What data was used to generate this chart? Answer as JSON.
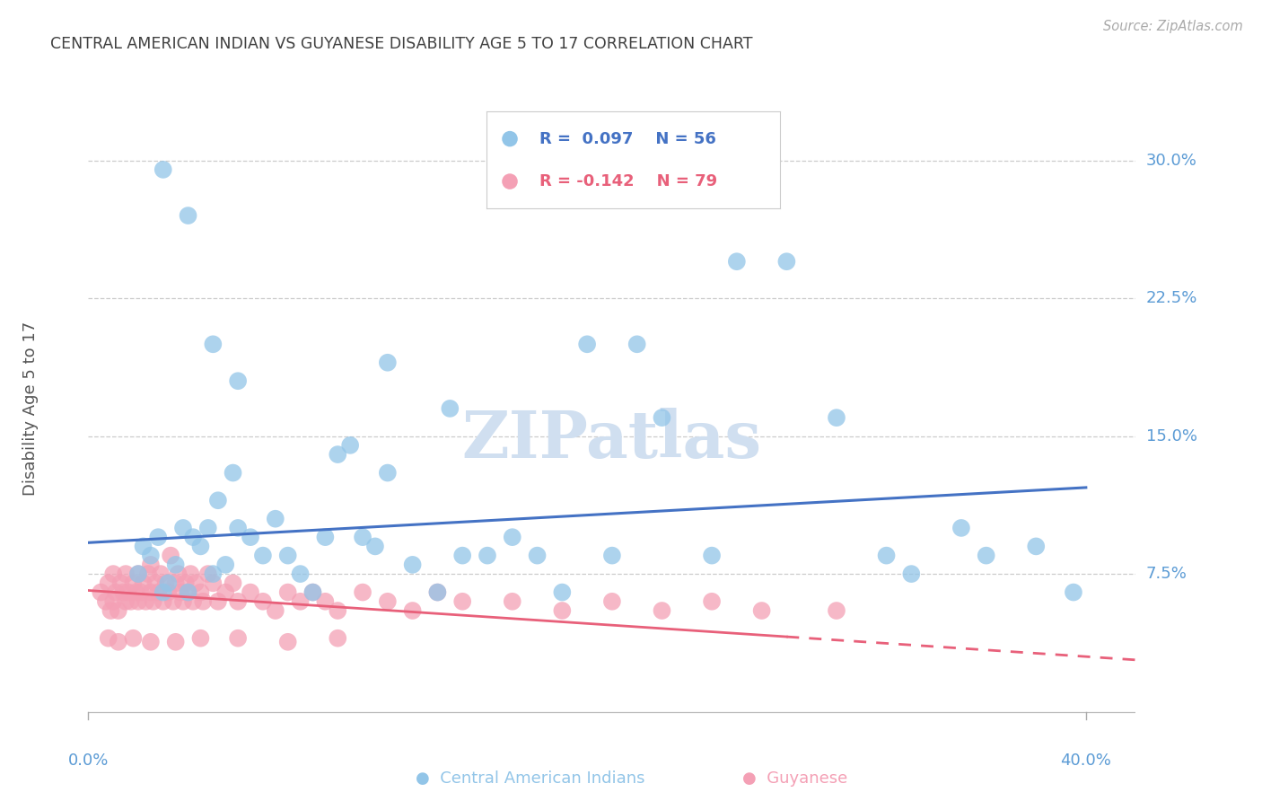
{
  "title": "CENTRAL AMERICAN INDIAN VS GUYANESE DISABILITY AGE 5 TO 17 CORRELATION CHART",
  "source": "Source: ZipAtlas.com",
  "ylabel": "Disability Age 5 to 17",
  "ytick_labels": [
    "30.0%",
    "22.5%",
    "15.0%",
    "7.5%"
  ],
  "ytick_values": [
    0.3,
    0.225,
    0.15,
    0.075
  ],
  "xlim": [
    0.0,
    0.42
  ],
  "ylim": [
    -0.005,
    0.335
  ],
  "legend_blue_r": "R =  0.097",
  "legend_blue_n": "N = 56",
  "legend_pink_r": "R = -0.142",
  "legend_pink_n": "N = 79",
  "blue_color": "#92C5E8",
  "pink_color": "#F4A0B5",
  "trendline_blue_color": "#4472C4",
  "trendline_pink_color": "#E8607A",
  "background_color": "#FFFFFF",
  "grid_color": "#CCCCCC",
  "title_color": "#404040",
  "axis_label_color": "#5B9BD5",
  "watermark_color": "#D0DFF0",
  "blue_scatter_x": [
    0.02,
    0.022,
    0.025,
    0.028,
    0.03,
    0.032,
    0.035,
    0.038,
    0.04,
    0.042,
    0.045,
    0.048,
    0.05,
    0.052,
    0.055,
    0.058,
    0.06,
    0.065,
    0.07,
    0.075,
    0.08,
    0.085,
    0.09,
    0.095,
    0.1,
    0.105,
    0.11,
    0.115,
    0.12,
    0.13,
    0.14,
    0.15,
    0.16,
    0.17,
    0.18,
    0.19,
    0.2,
    0.21,
    0.22,
    0.23,
    0.25,
    0.26,
    0.28,
    0.3,
    0.32,
    0.33,
    0.35,
    0.36,
    0.38,
    0.395,
    0.03,
    0.04,
    0.05,
    0.06,
    0.12,
    0.145
  ],
  "blue_scatter_y": [
    0.075,
    0.09,
    0.085,
    0.095,
    0.065,
    0.07,
    0.08,
    0.1,
    0.065,
    0.095,
    0.09,
    0.1,
    0.075,
    0.115,
    0.08,
    0.13,
    0.1,
    0.095,
    0.085,
    0.105,
    0.085,
    0.075,
    0.065,
    0.095,
    0.14,
    0.145,
    0.095,
    0.09,
    0.13,
    0.08,
    0.065,
    0.085,
    0.085,
    0.095,
    0.085,
    0.065,
    0.2,
    0.085,
    0.2,
    0.16,
    0.085,
    0.245,
    0.245,
    0.16,
    0.085,
    0.075,
    0.1,
    0.085,
    0.09,
    0.065,
    0.295,
    0.27,
    0.2,
    0.18,
    0.19,
    0.165
  ],
  "pink_scatter_x": [
    0.005,
    0.007,
    0.008,
    0.009,
    0.01,
    0.01,
    0.011,
    0.012,
    0.013,
    0.014,
    0.015,
    0.015,
    0.016,
    0.017,
    0.018,
    0.019,
    0.02,
    0.02,
    0.021,
    0.022,
    0.023,
    0.024,
    0.025,
    0.025,
    0.026,
    0.027,
    0.028,
    0.029,
    0.03,
    0.031,
    0.032,
    0.033,
    0.034,
    0.035,
    0.036,
    0.037,
    0.038,
    0.039,
    0.04,
    0.041,
    0.042,
    0.043,
    0.045,
    0.046,
    0.048,
    0.05,
    0.052,
    0.055,
    0.058,
    0.06,
    0.065,
    0.07,
    0.075,
    0.08,
    0.085,
    0.09,
    0.095,
    0.1,
    0.11,
    0.12,
    0.13,
    0.14,
    0.15,
    0.17,
    0.19,
    0.21,
    0.23,
    0.25,
    0.27,
    0.3,
    0.008,
    0.012,
    0.018,
    0.025,
    0.035,
    0.045,
    0.06,
    0.08,
    0.1
  ],
  "pink_scatter_y": [
    0.065,
    0.06,
    0.07,
    0.055,
    0.06,
    0.075,
    0.065,
    0.055,
    0.07,
    0.065,
    0.06,
    0.075,
    0.065,
    0.06,
    0.07,
    0.065,
    0.06,
    0.075,
    0.065,
    0.07,
    0.06,
    0.075,
    0.065,
    0.08,
    0.06,
    0.07,
    0.065,
    0.075,
    0.06,
    0.07,
    0.065,
    0.085,
    0.06,
    0.07,
    0.075,
    0.065,
    0.06,
    0.07,
    0.065,
    0.075,
    0.06,
    0.07,
    0.065,
    0.06,
    0.075,
    0.07,
    0.06,
    0.065,
    0.07,
    0.06,
    0.065,
    0.06,
    0.055,
    0.065,
    0.06,
    0.065,
    0.06,
    0.055,
    0.065,
    0.06,
    0.055,
    0.065,
    0.06,
    0.06,
    0.055,
    0.06,
    0.055,
    0.06,
    0.055,
    0.055,
    0.04,
    0.038,
    0.04,
    0.038,
    0.038,
    0.04,
    0.04,
    0.038,
    0.04
  ],
  "trendline_blue_x0": 0.0,
  "trendline_blue_y0": 0.092,
  "trendline_blue_x1": 0.4,
  "trendline_blue_y1": 0.122,
  "trendline_pink_x0": 0.0,
  "trendline_pink_y0": 0.066,
  "trendline_pink_x1": 0.4,
  "trendline_pink_y1": 0.03
}
